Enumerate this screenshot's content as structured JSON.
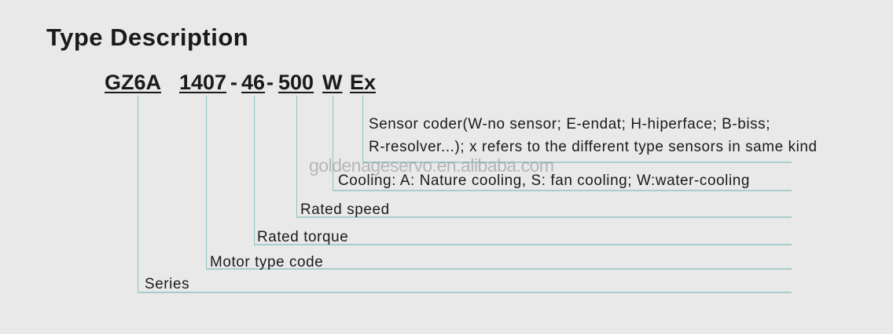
{
  "title": "Type Description",
  "code": {
    "series": "GZ6A",
    "motor_type": "1407",
    "sep1": "-",
    "torque": "46",
    "sep2": "-",
    "speed": "500",
    "cooling": "W",
    "sensor": "Ex"
  },
  "labels": {
    "sensor_line1": "Sensor coder(W-no sensor; E-endat; H-hiperface; B-biss;",
    "sensor_line2": "R-resolver...); x refers to the different type sensors in same kind",
    "cooling": "Cooling: A: Nature cooling, S: fan cooling; W:water-cooling",
    "speed": "Rated speed",
    "torque": "Rated torque",
    "motor_type": "Motor type code",
    "series": "Series"
  },
  "watermark": "goldenageservo.en.alibaba.com",
  "line_color": "#8fc3c3"
}
